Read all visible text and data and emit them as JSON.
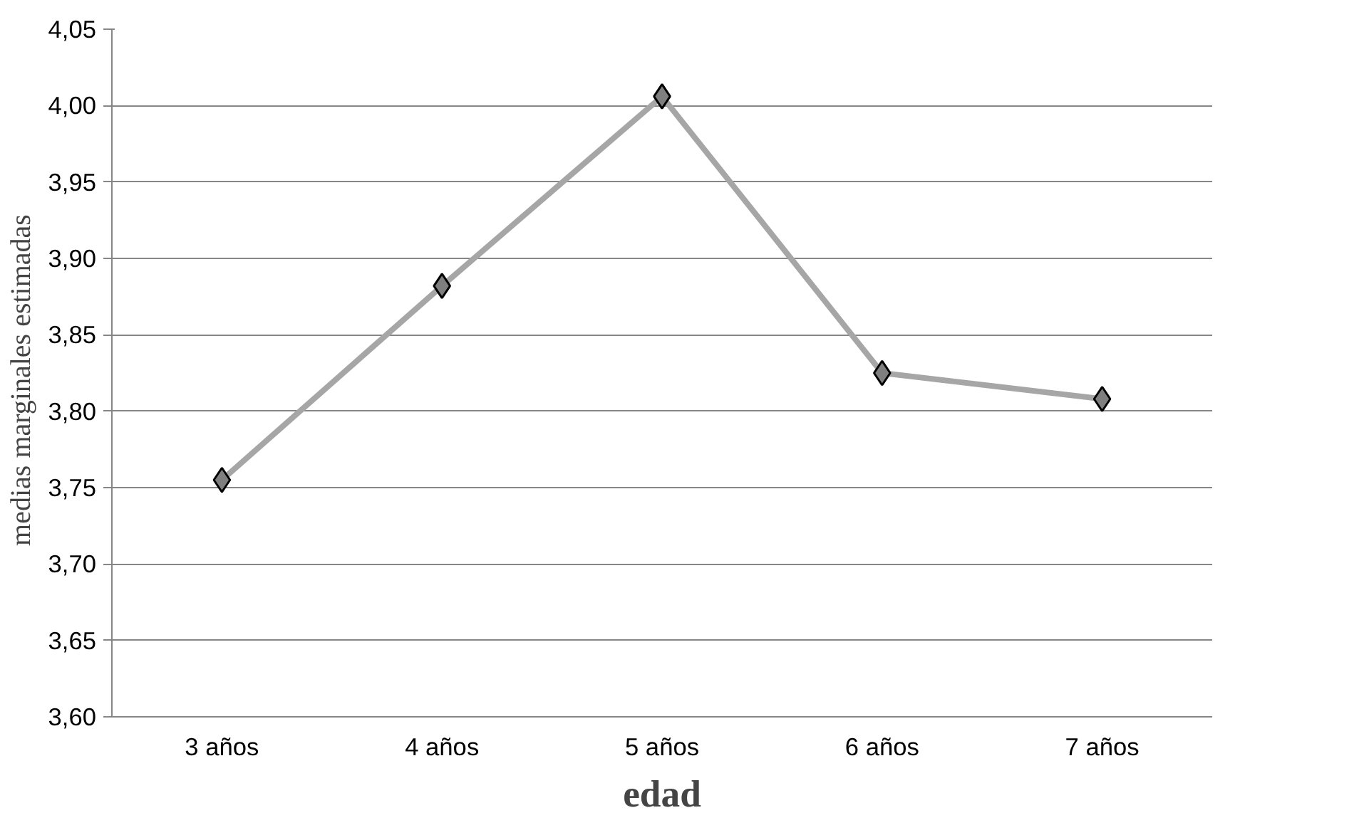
{
  "chart_data": {
    "type": "line",
    "xlabel": "edad",
    "ylabel": "medias  marginales  estimadas",
    "categories": [
      "3 años",
      "4 años",
      "5 años",
      "6 años",
      "7 años"
    ],
    "series": [
      {
        "color": "#a6a6a6",
        "values": [
          3.755,
          3.882,
          4.006,
          3.825,
          3.808
        ]
      }
    ],
    "marker": "diamond",
    "line_style": "solid",
    "ylim": [
      3.6,
      4.05
    ],
    "yticks": [
      {
        "value": 3.6,
        "label": "3,60"
      },
      {
        "value": 3.65,
        "label": "3,65"
      },
      {
        "value": 3.7,
        "label": "3,70"
      },
      {
        "value": 3.75,
        "label": "3,75"
      },
      {
        "value": 3.8,
        "label": "3,80"
      },
      {
        "value": 3.85,
        "label": "3,85"
      },
      {
        "value": 3.9,
        "label": "3,90"
      },
      {
        "value": 3.95,
        "label": "3,95"
      },
      {
        "value": 4.0,
        "label": "4,00"
      },
      {
        "value": 4.05,
        "label": "4,05"
      }
    ],
    "grid": "y"
  }
}
